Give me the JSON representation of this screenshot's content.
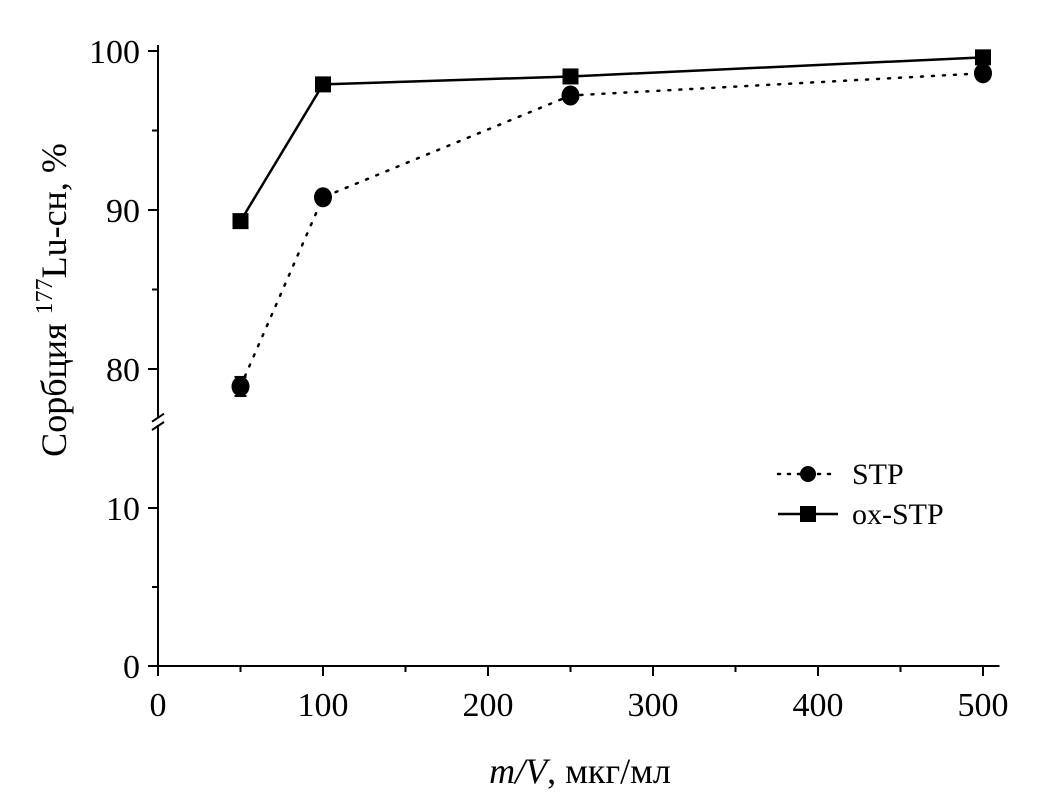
{
  "chart_data": {
    "type": "line",
    "title": "",
    "xlabel_italic": "m/V",
    "xlabel_rest": ", мкг/мл",
    "ylabel_prefix": "Сорбция ",
    "ylabel_sup": "177",
    "ylabel_suffix": "Lu-сн, %",
    "xlim": [
      0,
      510
    ],
    "ylim_lower": [
      0,
      15
    ],
    "ylim_upper": [
      77,
      100
    ],
    "axis_break": true,
    "x_ticks": [
      "0",
      "100",
      "200",
      "300",
      "400",
      "500"
    ],
    "x_tick_values": [
      0,
      100,
      200,
      300,
      400,
      500
    ],
    "y_ticks_lower": [
      "0",
      "10"
    ],
    "y_tick_values_lower": [
      0,
      10
    ],
    "y_ticks_upper": [
      "80",
      "90",
      "100"
    ],
    "y_tick_values_upper": [
      80,
      90,
      100
    ],
    "grid": false,
    "legend_position": "right",
    "series": [
      {
        "name": "STP",
        "marker": "circle",
        "line": "dotted",
        "x": [
          50,
          100,
          250,
          500
        ],
        "y": [
          78.9,
          90.8,
          97.2,
          98.6
        ],
        "yerr": [
          0.6,
          0,
          0,
          0
        ]
      },
      {
        "name": "ox-STP",
        "marker": "square",
        "line": "solid",
        "x": [
          50,
          100,
          250,
          500
        ],
        "y": [
          89.3,
          97.9,
          98.4,
          99.6
        ],
        "yerr": [
          0,
          0,
          0,
          0
        ]
      }
    ]
  }
}
